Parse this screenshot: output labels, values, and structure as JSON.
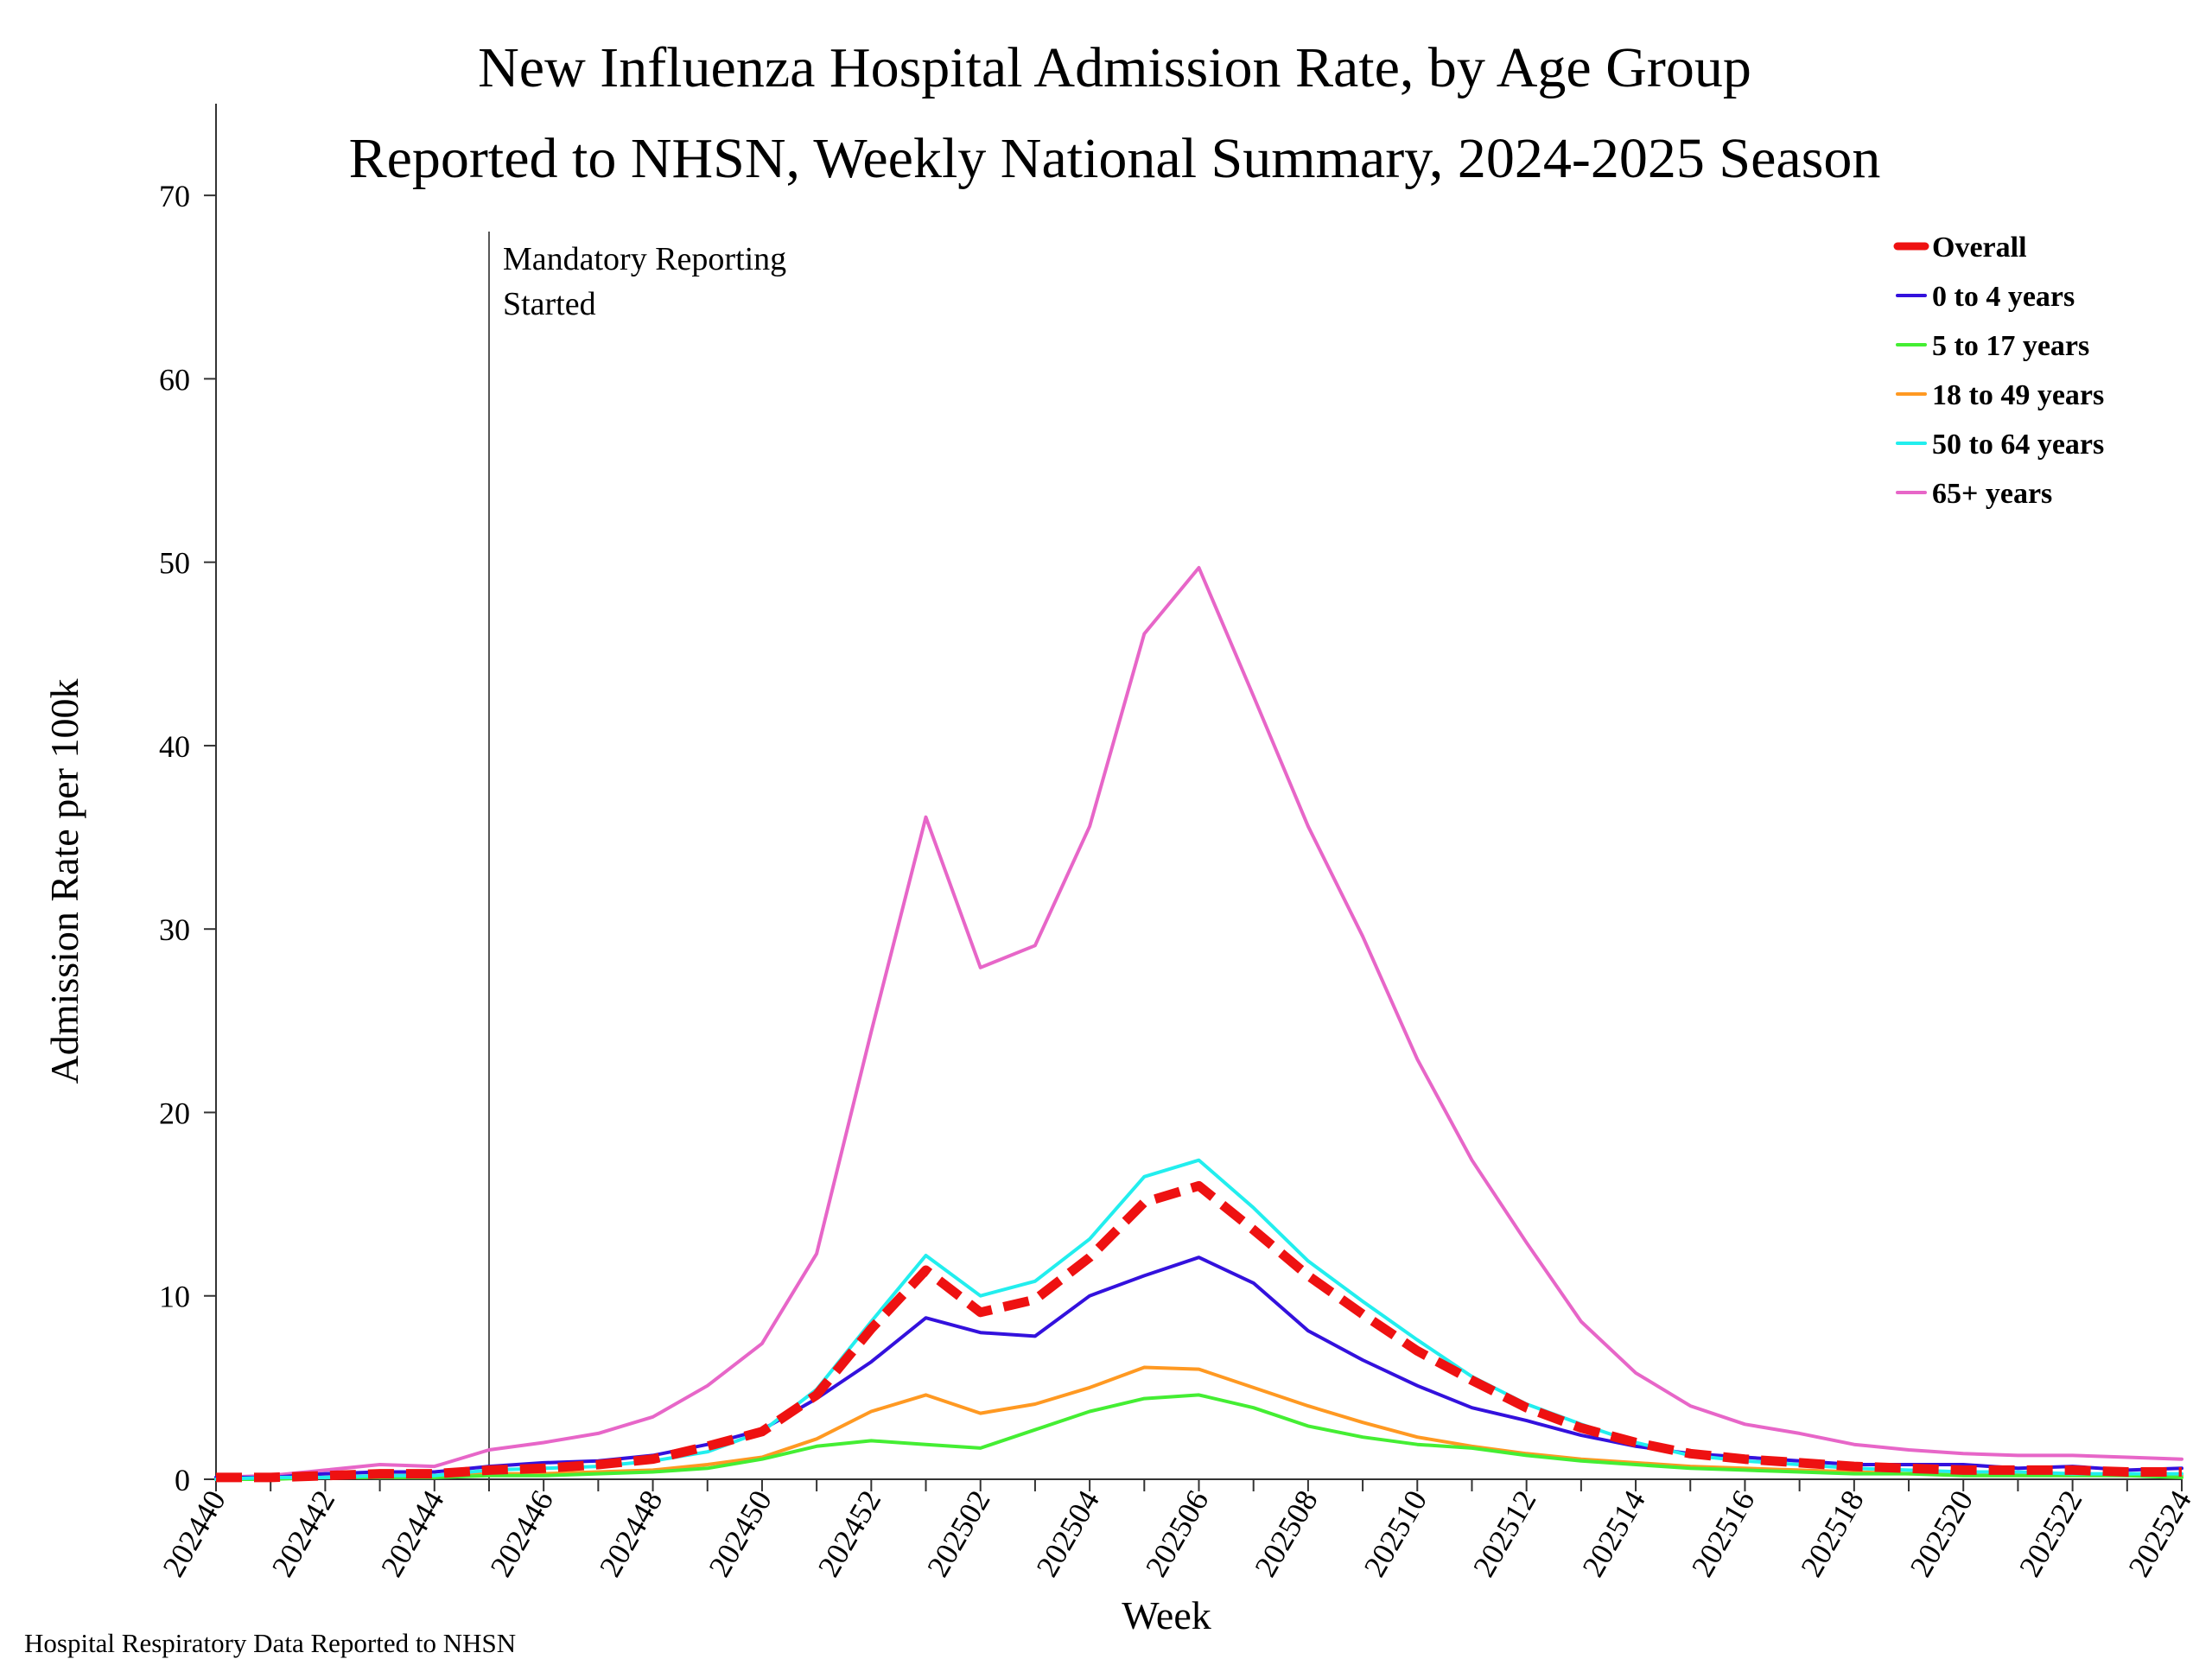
{
  "chart_data": {
    "type": "line",
    "title": "New Influenza Hospital Admission Rate, by Age Group",
    "subtitle": "Reported to NHSN, Weekly National Summary, 2024-2025 Season",
    "xlabel": "Week",
    "ylabel": "Admission Rate per 100k",
    "footer": "Hospital Respiratory Data Reported to NHSN",
    "ylim": [
      0,
      75
    ],
    "yticks": [
      0,
      10,
      20,
      30,
      40,
      50,
      60,
      70
    ],
    "x": [
      "202440",
      "202441",
      "202442",
      "202443",
      "202444",
      "202445",
      "202446",
      "202447",
      "202448",
      "202449",
      "202450",
      "202451",
      "202452",
      "202501",
      "202502",
      "202503",
      "202504",
      "202505",
      "202506",
      "202507",
      "202508",
      "202509",
      "202510",
      "202511",
      "202512",
      "202513",
      "202514",
      "202515",
      "202516",
      "202517",
      "202518",
      "202519",
      "202520",
      "202521",
      "202522",
      "202523",
      "202524"
    ],
    "xtick_labels": [
      "202440",
      "202442",
      "202444",
      "202446",
      "202448",
      "202450",
      "202452",
      "202502",
      "202504",
      "202506",
      "202508",
      "202510",
      "202512",
      "202514",
      "202516",
      "202518",
      "202520",
      "202522",
      "202524"
    ],
    "annotation": {
      "week": "202445",
      "lines": [
        "Mandatory Reporting",
        "Started"
      ]
    },
    "legend_position": "top-right",
    "grid": false,
    "series": [
      {
        "name": "Overall",
        "color": "#ee1111",
        "dashed": true,
        "values": [
          0.1,
          0.1,
          0.2,
          0.3,
          0.3,
          0.5,
          0.6,
          0.8,
          1.1,
          1.8,
          2.6,
          4.6,
          8.2,
          11.4,
          9.1,
          9.8,
          12.1,
          15.1,
          16.0,
          13.6,
          11.1,
          9.0,
          7.0,
          5.4,
          3.9,
          2.8,
          2.0,
          1.4,
          1.1,
          0.9,
          0.7,
          0.6,
          0.5,
          0.5,
          0.5,
          0.4,
          0.4
        ]
      },
      {
        "name": "0 to 4 years",
        "color": "#3311dd",
        "values": [
          0.1,
          0.1,
          0.3,
          0.4,
          0.4,
          0.7,
          0.9,
          1.0,
          1.3,
          1.9,
          2.7,
          4.4,
          6.4,
          8.8,
          8.0,
          7.8,
          10.0,
          11.1,
          12.1,
          10.7,
          8.1,
          6.5,
          5.1,
          3.9,
          3.2,
          2.4,
          1.8,
          1.4,
          1.2,
          1.0,
          0.8,
          0.8,
          0.8,
          0.6,
          0.7,
          0.5,
          0.6
        ]
      },
      {
        "name": "5 to 17 years",
        "color": "#44ee33",
        "values": [
          0.0,
          0.0,
          0.1,
          0.1,
          0.1,
          0.2,
          0.2,
          0.3,
          0.4,
          0.6,
          1.1,
          1.8,
          2.1,
          1.9,
          1.7,
          2.7,
          3.7,
          4.4,
          4.6,
          3.9,
          2.9,
          2.3,
          1.9,
          1.7,
          1.3,
          1.0,
          0.8,
          0.6,
          0.5,
          0.4,
          0.3,
          0.3,
          0.2,
          0.2,
          0.2,
          0.2,
          0.1
        ]
      },
      {
        "name": "18 to 49 years",
        "color": "#ff9922",
        "values": [
          0.0,
          0.1,
          0.1,
          0.2,
          0.2,
          0.3,
          0.3,
          0.4,
          0.5,
          0.8,
          1.2,
          2.2,
          3.7,
          4.6,
          3.6,
          4.1,
          5.0,
          6.1,
          6.0,
          5.0,
          4.0,
          3.1,
          2.3,
          1.8,
          1.4,
          1.1,
          0.9,
          0.7,
          0.6,
          0.5,
          0.4,
          0.3,
          0.3,
          0.3,
          0.3,
          0.2,
          0.2
        ]
      },
      {
        "name": "50 to 64 years",
        "color": "#22eeee",
        "values": [
          0.0,
          0.1,
          0.1,
          0.2,
          0.2,
          0.5,
          0.6,
          0.7,
          1.0,
          1.5,
          2.6,
          4.9,
          8.6,
          12.2,
          10.0,
          10.8,
          13.1,
          16.5,
          17.4,
          14.8,
          11.9,
          9.7,
          7.6,
          5.6,
          4.1,
          3.0,
          2.0,
          1.3,
          1.0,
          0.8,
          0.6,
          0.5,
          0.4,
          0.4,
          0.3,
          0.3,
          0.3
        ]
      },
      {
        "name": "65+ years",
        "color": "#e766c8",
        "values": [
          0.1,
          0.2,
          0.5,
          0.8,
          0.7,
          1.6,
          2.0,
          2.5,
          3.4,
          5.1,
          7.4,
          12.3,
          24.4,
          36.1,
          27.9,
          29.1,
          35.6,
          46.1,
          49.7,
          42.7,
          35.6,
          29.6,
          22.9,
          17.4,
          12.9,
          8.6,
          5.8,
          4.0,
          3.0,
          2.5,
          1.9,
          1.6,
          1.4,
          1.3,
          1.3,
          1.2,
          1.1
        ]
      }
    ]
  }
}
